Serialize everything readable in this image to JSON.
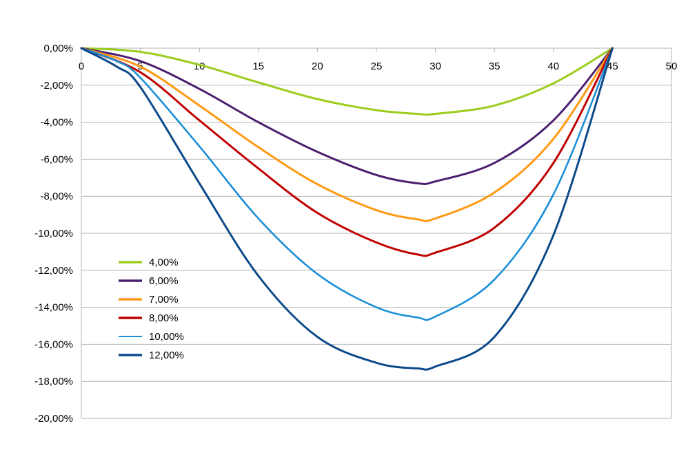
{
  "chart_data": {
    "type": "line",
    "title": "",
    "xlabel": "",
    "ylabel": "",
    "xlim": [
      0,
      50
    ],
    "ylim": [
      -20,
      0
    ],
    "x_ticks": [
      "0",
      "5",
      "10",
      "15",
      "20",
      "25",
      "30",
      "35",
      "40",
      "45",
      "50"
    ],
    "y_ticks": [
      "0,00%",
      "-2,00%",
      "-4,00%",
      "-6,00%",
      "-8,00%",
      "-10,00%",
      "-12,00%",
      "-14,00%",
      "-16,00%",
      "-18,00%",
      "-20,00%"
    ],
    "grid": true,
    "legend_position": "lower-left",
    "series": [
      {
        "name": "4,00%",
        "color": "#9acd1c",
        "x": [
          0,
          5,
          10,
          15,
          20,
          25,
          28.5,
          30,
          35,
          40,
          45
        ],
        "y": [
          0,
          -0.2,
          -0.9,
          -1.85,
          -2.75,
          -3.35,
          -3.55,
          -3.55,
          -3.1,
          -1.9,
          0
        ]
      },
      {
        "name": "6,00%",
        "color": "#4b1f6f",
        "x": [
          0,
          5,
          10,
          15,
          20,
          25,
          28.5,
          30,
          35,
          40,
          45
        ],
        "y": [
          0,
          -0.7,
          -2.2,
          -4.0,
          -5.6,
          -6.85,
          -7.3,
          -7.2,
          -6.2,
          -3.9,
          0
        ]
      },
      {
        "name": "7,00%",
        "color": "#ff9912",
        "x": [
          0,
          5,
          10,
          15,
          20,
          25,
          28.5,
          30,
          35,
          40,
          45
        ],
        "y": [
          0,
          -1.0,
          -3.1,
          -5.35,
          -7.35,
          -8.75,
          -9.25,
          -9.2,
          -7.8,
          -4.9,
          0
        ]
      },
      {
        "name": "8,00%",
        "color": "#c00000",
        "x": [
          0,
          5,
          10,
          15,
          20,
          25,
          28.5,
          30,
          35,
          40,
          45
        ],
        "y": [
          0,
          -1.3,
          -3.9,
          -6.5,
          -8.9,
          -10.5,
          -11.15,
          -11.05,
          -9.7,
          -6.2,
          0
        ]
      },
      {
        "name": "10,00%",
        "color": "#1a8fd8",
        "x": [
          0,
          3,
          5,
          10,
          15,
          20,
          25,
          28.5,
          30,
          35,
          40,
          45
        ],
        "y": [
          0,
          -0.7,
          -1.6,
          -5.3,
          -9.2,
          -12.2,
          -14.0,
          -14.55,
          -14.5,
          -12.5,
          -7.9,
          0
        ]
      },
      {
        "name": "12,00%",
        "color": "#0c4a8a",
        "x": [
          0,
          3,
          5,
          10,
          15,
          20,
          25,
          28.5,
          30,
          35,
          40,
          45
        ],
        "y": [
          0,
          -1.0,
          -2.1,
          -7.3,
          -12.3,
          -15.6,
          -17.0,
          -17.3,
          -17.2,
          -15.6,
          -10.1,
          0
        ]
      }
    ]
  }
}
